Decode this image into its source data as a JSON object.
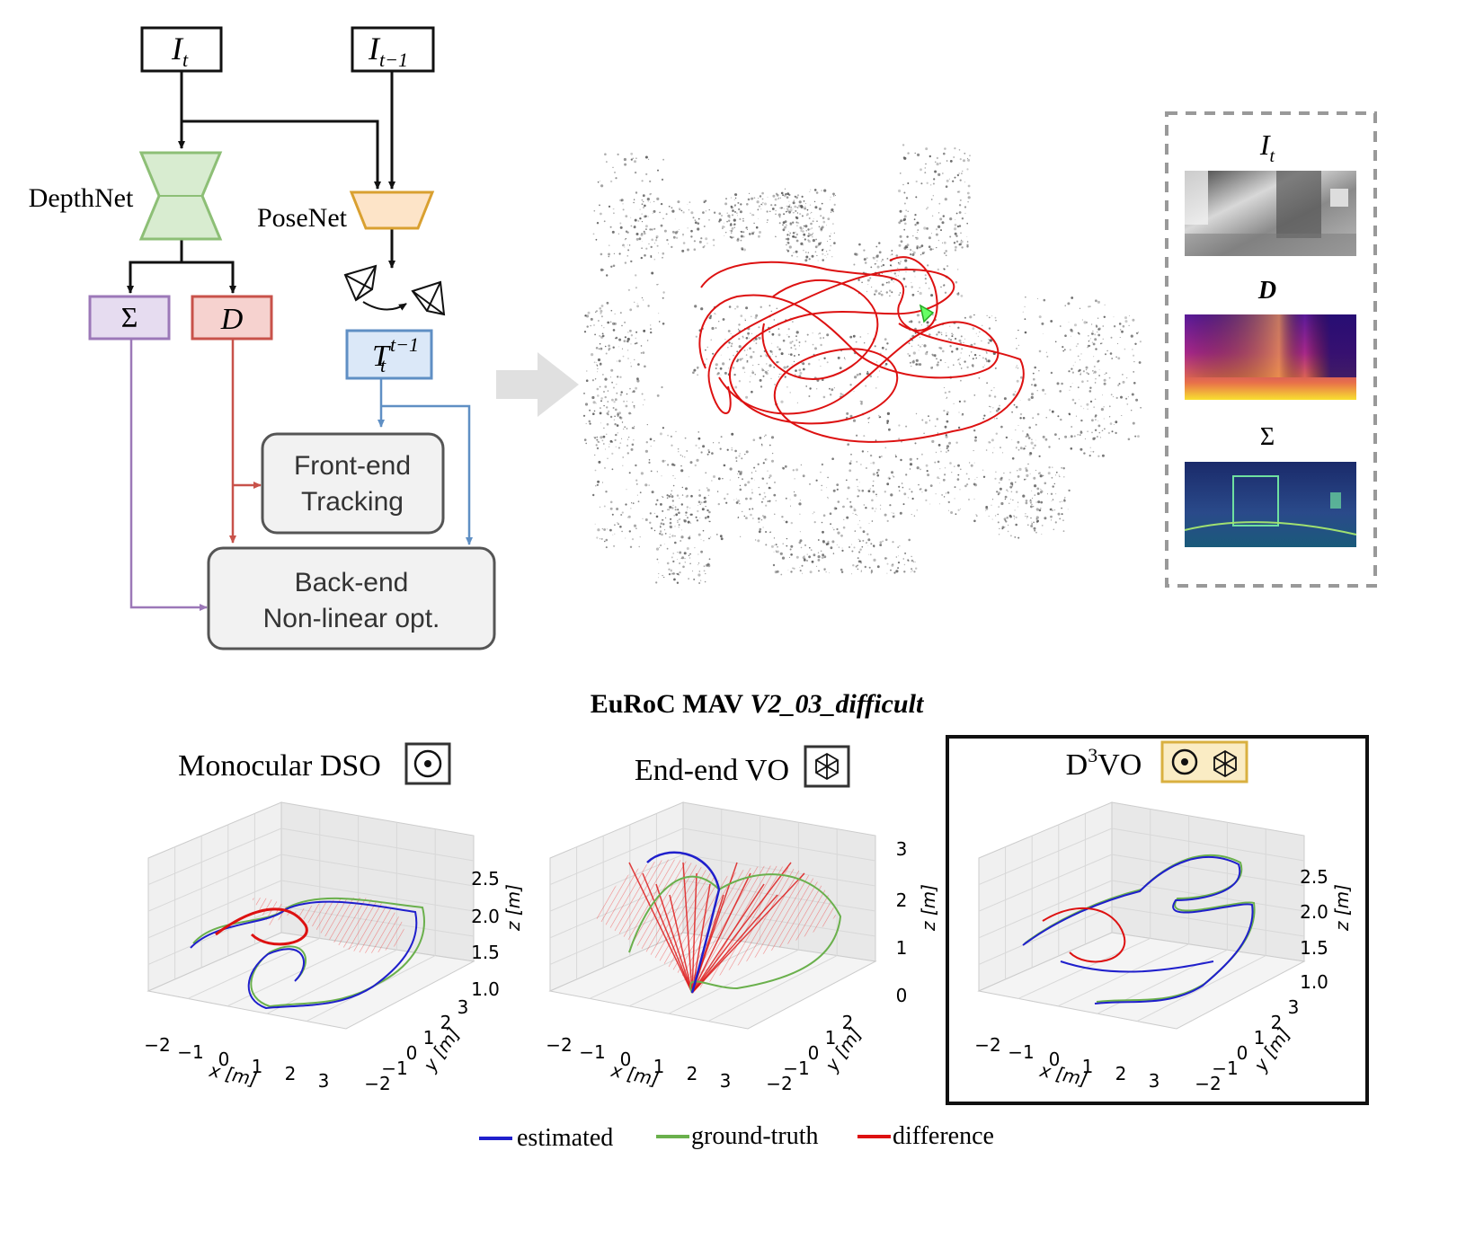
{
  "diagram": {
    "input_it": "I",
    "input_it_sub": "t",
    "input_itm1": "I",
    "input_itm1_sub": "t−1",
    "depthnet_label": "DepthNet",
    "posenet_label": "PoseNet",
    "sigma_label": "Σ",
    "depth_label": "D",
    "pose_T": "T",
    "pose_T_sub": "t",
    "pose_T_sup": "t−1",
    "frontend_line1": "Front-end",
    "frontend_line2": "Tracking",
    "backend_line1": "Back-end",
    "backend_line2": "Non-linear opt."
  },
  "side_panel": {
    "image_label": "I",
    "image_sub": "t",
    "depth_label": "D",
    "sigma_label": "Σ"
  },
  "colors": {
    "depthnet": "#8dbf76",
    "posenet": "#d9a030",
    "sigma": "#9c78b8",
    "depth": "#c8524a",
    "pose": "#5f8fc4",
    "estimated": "#1f1fcc",
    "ground_truth": "#6ab04c",
    "difference": "#dd1111"
  },
  "figure_title": {
    "bold": "EuRoC MAV",
    "italic": "V2_03_difficult"
  },
  "plots": [
    {
      "title": "Monocular DSO",
      "x_ticks": [
        "−2",
        "−1",
        "0",
        "1",
        "2",
        "3"
      ],
      "x_label": "x [m]",
      "y_ticks": [
        "−2",
        "−1",
        "0",
        "1",
        "2",
        "3"
      ],
      "y_label": "y [m]",
      "z_ticks": [
        "1.0",
        "1.5",
        "2.0",
        "2.5"
      ],
      "z_label": "z [m]"
    },
    {
      "title": "End-end VO",
      "x_ticks": [
        "−2",
        "−1",
        "0",
        "1",
        "2",
        "3"
      ],
      "x_label": "x [m]",
      "y_ticks": [
        "−2",
        "−1",
        "0",
        "1",
        "2"
      ],
      "y_label": "y [m]",
      "z_ticks": [
        "0",
        "1",
        "2",
        "3"
      ],
      "z_label": "z [m]"
    },
    {
      "title": "D",
      "title_sup": "3",
      "title_rest": "VO",
      "x_ticks": [
        "−2",
        "−1",
        "0",
        "1",
        "2",
        "3"
      ],
      "x_label": "x [m]",
      "y_ticks": [
        "−2",
        "−1",
        "0",
        "1",
        "2",
        "3"
      ],
      "y_label": "y [m]",
      "z_ticks": [
        "1.0",
        "1.5",
        "2.0",
        "2.5"
      ],
      "z_label": "z [m]"
    }
  ],
  "legend": [
    {
      "label": "estimated",
      "color": "#1f1fcc"
    },
    {
      "label": "ground-truth",
      "color": "#6ab04c"
    },
    {
      "label": "difference",
      "color": "#dd1111"
    }
  ]
}
